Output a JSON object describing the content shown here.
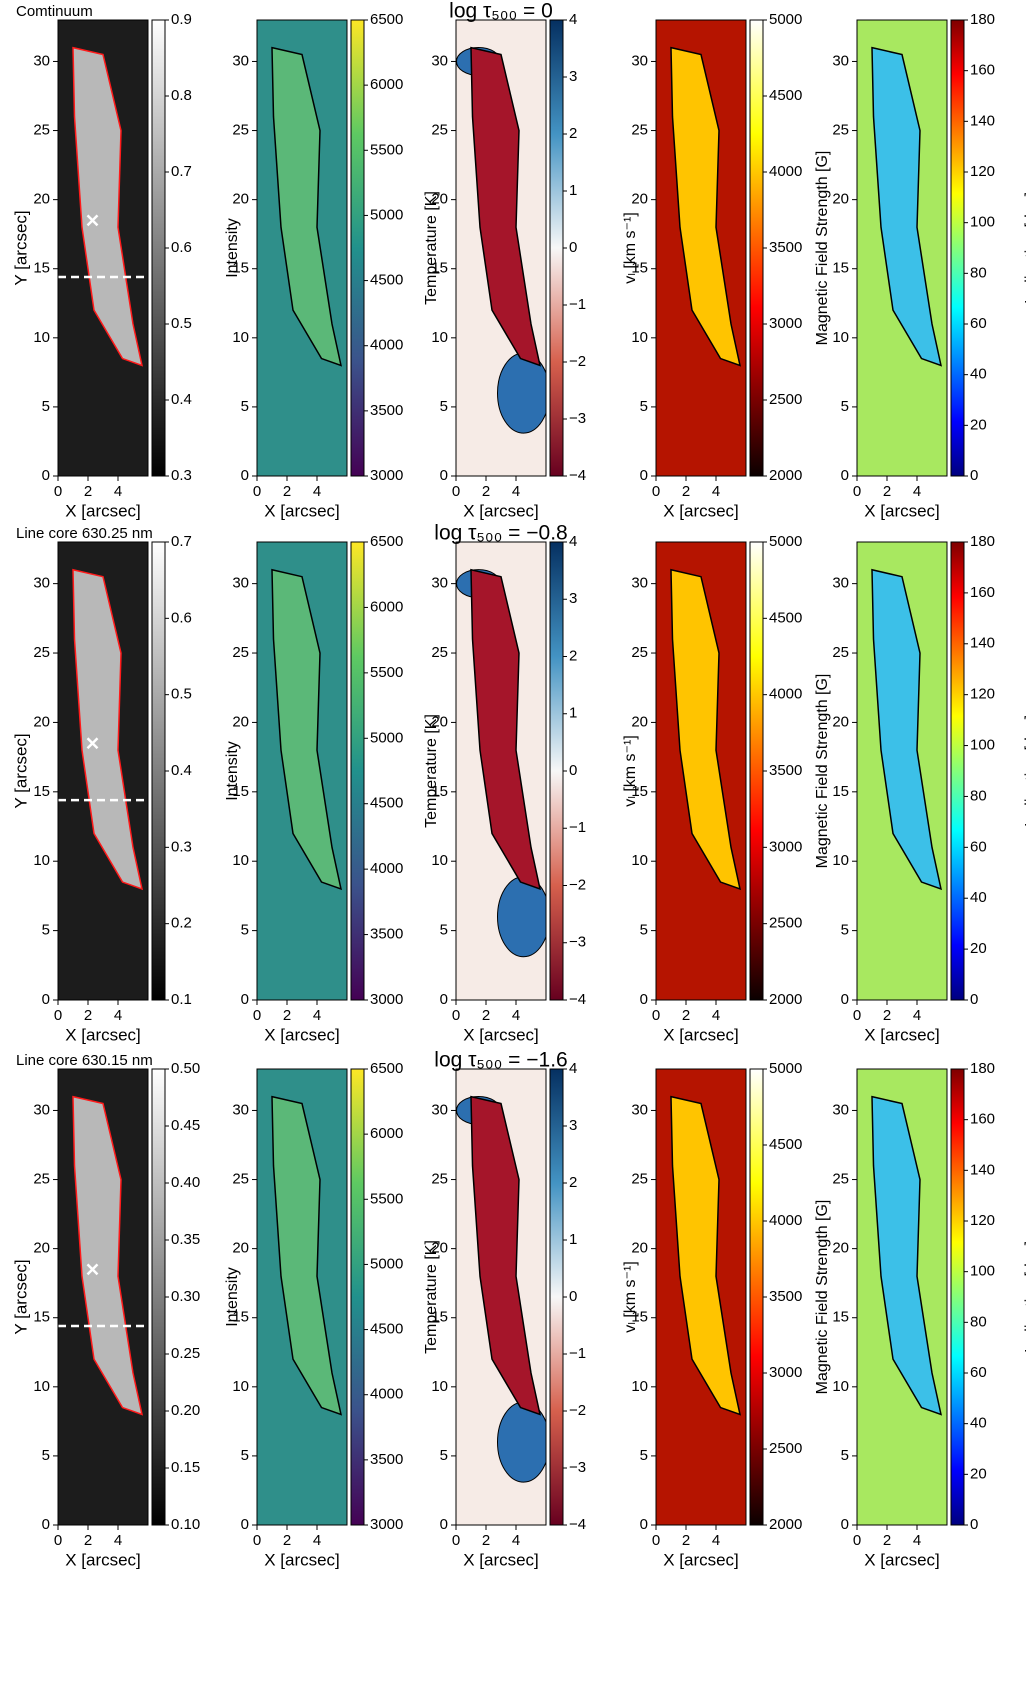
{
  "chart_data": [
    {
      "type": "image",
      "title": "Comtinuum",
      "xlabel": "X [arcsec]",
      "ylabel": "Y [arcsec]",
      "xlim": [
        0,
        6
      ],
      "ylim": [
        0,
        33
      ],
      "xticks": [
        0,
        2,
        4
      ],
      "yticks": [
        0,
        5,
        10,
        15,
        20,
        25,
        30
      ],
      "colormap": "gray",
      "clim": [
        0.3,
        0.9
      ],
      "cticks": [
        0.3,
        0.4,
        0.5,
        0.6,
        0.7,
        0.8,
        0.9
      ],
      "clabel": "Intensity"
    },
    {
      "type": "image",
      "xlabel": "X [arcsec]",
      "xlim": [
        0,
        6
      ],
      "ylim": [
        0,
        33
      ],
      "xticks": [
        0,
        2,
        4
      ],
      "yticks": [
        0,
        5,
        10,
        15,
        20,
        25,
        30
      ],
      "colormap": "viridis",
      "clim": [
        3000,
        6500
      ],
      "cticks": [
        3000,
        3500,
        4000,
        4500,
        5000,
        5500,
        6000,
        6500
      ],
      "clabel": "Temperature [K]"
    },
    {
      "type": "image",
      "title": "log τ₅₀₀ = 0",
      "xlabel": "X [arcsec]",
      "xlim": [
        0,
        6
      ],
      "ylim": [
        0,
        33
      ],
      "xticks": [
        0,
        2,
        4
      ],
      "yticks": [
        0,
        5,
        10,
        15,
        20,
        25,
        30
      ],
      "colormap": "RdBu",
      "clim": [
        -4,
        4
      ],
      "cticks": [
        {
          "value": -4,
          "label": "−4"
        },
        {
          "value": -3,
          "label": "−3"
        },
        {
          "value": -2,
          "label": "−2"
        },
        {
          "value": -1,
          "label": "−1"
        },
        0,
        1,
        2,
        3,
        4
      ],
      "clabel": "vₗ [km s⁻¹]"
    },
    {
      "type": "image",
      "xlabel": "X [arcsec]",
      "xlim": [
        0,
        6
      ],
      "ylim": [
        0,
        33
      ],
      "xticks": [
        0,
        2,
        4
      ],
      "yticks": [
        0,
        5,
        10,
        15,
        20,
        25,
        30
      ],
      "colormap": "hot",
      "clim": [
        2000,
        5000
      ],
      "cticks": [
        2000,
        2500,
        3000,
        3500,
        4000,
        4500,
        5000
      ],
      "clabel": "Magnetic Field Strength [G]"
    },
    {
      "type": "image",
      "xlabel": "X [arcsec]",
      "xlim": [
        0,
        6
      ],
      "ylim": [
        0,
        33
      ],
      "xticks": [
        0,
        2,
        4
      ],
      "yticks": [
        0,
        5,
        10,
        15,
        20,
        25,
        30
      ],
      "colormap": "jet",
      "clim": [
        0,
        180
      ],
      "cticks": [
        0,
        20,
        40,
        60,
        80,
        100,
        120,
        140,
        160,
        180
      ],
      "clabel": "Inclination [deg]"
    },
    {
      "type": "image",
      "title": "Line core 630.25 nm",
      "xlabel": "X [arcsec]",
      "ylabel": "Y [arcsec]",
      "xlim": [
        0,
        6
      ],
      "ylim": [
        0,
        33
      ],
      "xticks": [
        0,
        2,
        4
      ],
      "yticks": [
        0,
        5,
        10,
        15,
        20,
        25,
        30
      ],
      "colormap": "gray",
      "clim": [
        0.1,
        0.7
      ],
      "cticks": [
        0.1,
        0.2,
        0.3,
        0.4,
        0.5,
        0.6,
        0.7
      ],
      "clabel": "Intensity"
    },
    {
      "type": "image",
      "xlabel": "X [arcsec]",
      "xlim": [
        0,
        6
      ],
      "ylim": [
        0,
        33
      ],
      "xticks": [
        0,
        2,
        4
      ],
      "yticks": [
        0,
        5,
        10,
        15,
        20,
        25,
        30
      ],
      "colormap": "viridis",
      "clim": [
        3000,
        6500
      ],
      "cticks": [
        3000,
        3500,
        4000,
        4500,
        5000,
        5500,
        6000,
        6500
      ],
      "clabel": "Temperature [K]"
    },
    {
      "type": "image",
      "title": "log τ₅₀₀ = −0.8",
      "xlabel": "X [arcsec]",
      "xlim": [
        0,
        6
      ],
      "ylim": [
        0,
        33
      ],
      "xticks": [
        0,
        2,
        4
      ],
      "yticks": [
        0,
        5,
        10,
        15,
        20,
        25,
        30
      ],
      "colormap": "RdBu",
      "clim": [
        -4,
        4
      ],
      "cticks": [
        {
          "value": -4,
          "label": "−4"
        },
        {
          "value": -3,
          "label": "−3"
        },
        {
          "value": -2,
          "label": "−2"
        },
        {
          "value": -1,
          "label": "−1"
        },
        0,
        1,
        2,
        3,
        4
      ],
      "clabel": "vₗ [km s⁻¹]"
    },
    {
      "type": "image",
      "xlabel": "X [arcsec]",
      "xlim": [
        0,
        6
      ],
      "ylim": [
        0,
        33
      ],
      "xticks": [
        0,
        2,
        4
      ],
      "yticks": [
        0,
        5,
        10,
        15,
        20,
        25,
        30
      ],
      "colormap": "hot",
      "clim": [
        2000,
        5000
      ],
      "cticks": [
        2000,
        2500,
        3000,
        3500,
        4000,
        4500,
        5000
      ],
      "clabel": "Magnetic Field Strength [G]"
    },
    {
      "type": "image",
      "xlabel": "X [arcsec]",
      "xlim": [
        0,
        6
      ],
      "ylim": [
        0,
        33
      ],
      "xticks": [
        0,
        2,
        4
      ],
      "yticks": [
        0,
        5,
        10,
        15,
        20,
        25,
        30
      ],
      "colormap": "jet",
      "clim": [
        0,
        180
      ],
      "cticks": [
        0,
        20,
        40,
        60,
        80,
        100,
        120,
        140,
        160,
        180
      ],
      "clabel": "Inclination [deg]"
    },
    {
      "type": "image",
      "title": "Line core 630.15 nm",
      "xlabel": "X [arcsec]",
      "ylabel": "Y [arcsec]",
      "xlim": [
        0,
        6
      ],
      "ylim": [
        0,
        33
      ],
      "xticks": [
        0,
        2,
        4
      ],
      "yticks": [
        0,
        5,
        10,
        15,
        20,
        25,
        30
      ],
      "colormap": "gray",
      "clim": [
        0.1,
        0.5
      ],
      "cticks": [
        {
          "value": 0.1,
          "label": "0.10"
        },
        0.15,
        {
          "value": 0.2,
          "label": "0.20"
        },
        0.25,
        {
          "value": 0.3,
          "label": "0.30"
        },
        0.35,
        {
          "value": 0.4,
          "label": "0.40"
        },
        0.45,
        {
          "value": 0.5,
          "label": "0.50"
        }
      ],
      "clabel": "Intensity"
    },
    {
      "type": "image",
      "xlabel": "X [arcsec]",
      "xlim": [
        0,
        6
      ],
      "ylim": [
        0,
        33
      ],
      "xticks": [
        0,
        2,
        4
      ],
      "yticks": [
        0,
        5,
        10,
        15,
        20,
        25,
        30
      ],
      "colormap": "viridis",
      "clim": [
        3000,
        6500
      ],
      "cticks": [
        3000,
        3500,
        4000,
        4500,
        5000,
        5500,
        6000,
        6500
      ],
      "clabel": "Temperature [K]"
    },
    {
      "type": "image",
      "title": "log τ₅₀₀ = −1.6",
      "xlabel": "X [arcsec]",
      "xlim": [
        0,
        6
      ],
      "ylim": [
        0,
        33
      ],
      "xticks": [
        0,
        2,
        4
      ],
      "yticks": [
        0,
        5,
        10,
        15,
        20,
        25,
        30
      ],
      "colormap": "RdBu",
      "clim": [
        -4,
        4
      ],
      "cticks": [
        {
          "value": -4,
          "label": "−4"
        },
        {
          "value": -3,
          "label": "−3"
        },
        {
          "value": -2,
          "label": "−2"
        },
        {
          "value": -1,
          "label": "−1"
        },
        0,
        1,
        2,
        3,
        4
      ],
      "clabel": "vₗ [km s⁻¹]"
    },
    {
      "type": "image",
      "xlabel": "X [arcsec]",
      "xlim": [
        0,
        6
      ],
      "ylim": [
        0,
        33
      ],
      "xticks": [
        0,
        2,
        4
      ],
      "yticks": [
        0,
        5,
        10,
        15,
        20,
        25,
        30
      ],
      "colormap": "hot",
      "clim": [
        2000,
        5000
      ],
      "cticks": [
        2000,
        2500,
        3000,
        3500,
        4000,
        4500,
        5000
      ],
      "clabel": "Magnetic Field Strength [G]"
    },
    {
      "type": "image",
      "xlabel": "X [arcsec]",
      "xlim": [
        0,
        6
      ],
      "ylim": [
        0,
        33
      ],
      "xticks": [
        0,
        2,
        4
      ],
      "yticks": [
        0,
        5,
        10,
        15,
        20,
        25,
        30
      ],
      "colormap": "jet",
      "clim": [
        0,
        180
      ],
      "cticks": [
        0,
        20,
        40,
        60,
        80,
        100,
        120,
        140,
        160,
        180
      ],
      "clabel": "Inclination [deg]"
    }
  ]
}
